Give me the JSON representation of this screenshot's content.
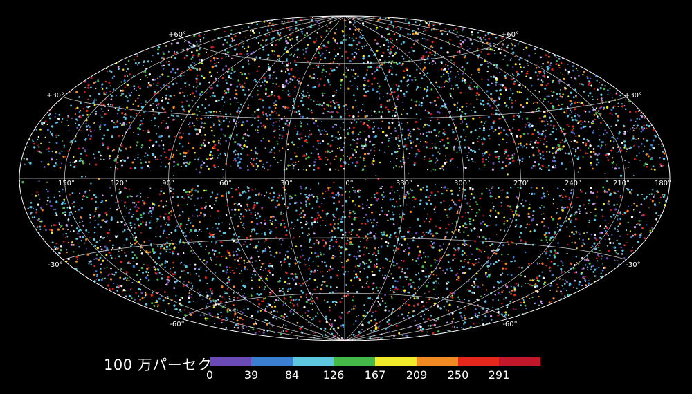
{
  "map": {
    "projection": "hammer-aitoff",
    "background": "#000000",
    "grid_color": "#ffffff",
    "longitude_labels": [
      "150°",
      "120°",
      "90°",
      "60°",
      "30°",
      "0°",
      "330°",
      "300°",
      "270°",
      "240°",
      "210°",
      "180°"
    ],
    "latitude_labels": {
      "north_60": "+60°",
      "north_30": "+30°",
      "south_30": "-30°",
      "south_60": "-60°"
    },
    "palette": [
      "#6a4bb6",
      "#3b7fd0",
      "#5fc6e0",
      "#46b84a",
      "#f0ea2a",
      "#f28a23",
      "#e5271d",
      "#c0182a",
      "#c8a0e8",
      "#ffffff"
    ]
  },
  "colorbar": {
    "label": "100 万パーセク",
    "ticks": [
      "0",
      "39",
      "84",
      "126",
      "167",
      "209",
      "250",
      "291"
    ],
    "segment_colors": [
      "#6a4bb6",
      "#3b7fd0",
      "#5fc6e0",
      "#46b84a",
      "#f0ea2a",
      "#f28a23",
      "#e5271d",
      "#c0182a"
    ]
  }
}
